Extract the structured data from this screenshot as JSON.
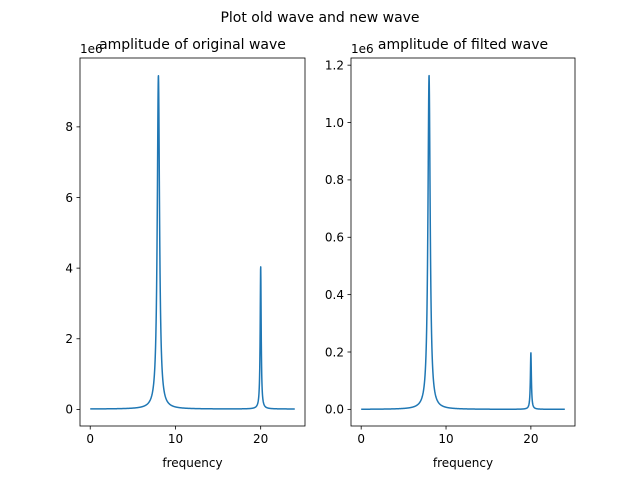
{
  "figure": {
    "suptitle": "Plot old wave and new wave"
  },
  "colors": {
    "line": "#1f77b4",
    "axes": "#000000",
    "background": "#ffffff"
  },
  "chart_data": [
    {
      "type": "line",
      "title": "amplitude of original wave",
      "xlabel": "frequency",
      "ylabel": "",
      "y_offset_label": "1e6",
      "xlim": [
        -1.2,
        25.2
      ],
      "ylim": [
        -0.47,
        9.95
      ],
      "xticks": [
        0,
        10,
        20
      ],
      "xtick_labels": [
        "0",
        "10",
        "20"
      ],
      "yticks": [
        0,
        2,
        4,
        6,
        8
      ],
      "ytick_labels": [
        "0",
        "2",
        "4",
        "6",
        "8"
      ],
      "grid": false,
      "legend": "none",
      "series": [
        {
          "baseline": 0.01,
          "x_range": [
            0,
            24
          ],
          "peaks": [
            {
              "x": 8,
              "y": 9.45,
              "width": 0.16
            },
            {
              "x": 20,
              "y": 4.05,
              "width": 0.07
            }
          ]
        }
      ]
    },
    {
      "type": "line",
      "title": "amplitude of filted wave",
      "xlabel": "frequency",
      "ylabel": "",
      "y_offset_label": "1e6",
      "xlim": [
        -1.2,
        25.2
      ],
      "ylim": [
        -0.058,
        1.225
      ],
      "xticks": [
        0,
        10,
        20
      ],
      "xtick_labels": [
        "0",
        "10",
        "20"
      ],
      "yticks": [
        0,
        0.2,
        0.4,
        0.6,
        0.8,
        1.0,
        1.2
      ],
      "ytick_labels": [
        "0.0",
        "0.2",
        "0.4",
        "0.6",
        "0.8",
        "1.0",
        "1.2"
      ],
      "grid": false,
      "legend": "none",
      "series": [
        {
          "baseline": 0.0,
          "x_range": [
            0,
            24
          ],
          "peaks": [
            {
              "x": 8,
              "y": 1.165,
              "width": 0.16
            },
            {
              "x": 20,
              "y": 0.198,
              "width": 0.07
            }
          ]
        }
      ]
    }
  ]
}
